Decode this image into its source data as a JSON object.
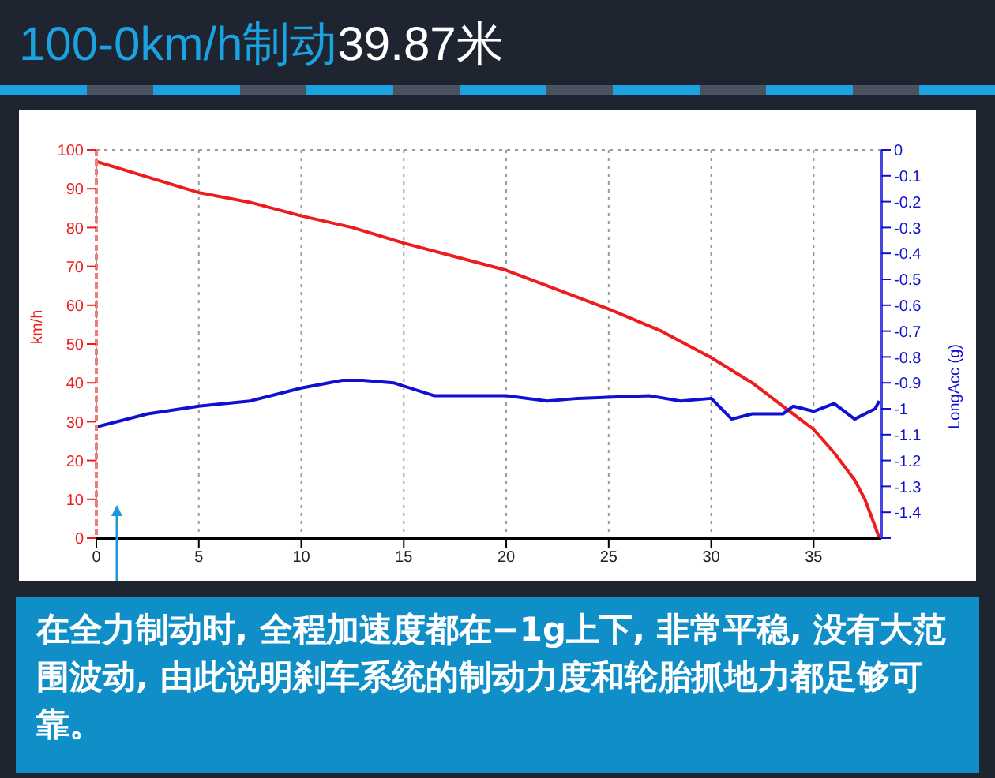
{
  "chart_data": {
    "type": "line",
    "title": "100-0km/h制动39.87米",
    "ylabel": "km/h",
    "y2label": "LongAcc (g)",
    "annotations": [
      "在全力制动时, 全程加速度都在−1g上下, 非常平稳, 没有大范围波动, 由此说明刹车系统的制动力度和轮胎抓地力都足够可靠。"
    ],
    "xlim": [
      0,
      38.3
    ],
    "xticks": [
      0,
      5,
      10,
      15,
      20,
      25,
      30,
      35
    ],
    "ylim": [
      0,
      100
    ],
    "yticks": [
      0,
      10,
      20,
      30,
      40,
      50,
      60,
      70,
      80,
      90,
      100
    ],
    "y2lim": [
      -1.5,
      0
    ],
    "y2ticks": [
      {
        "value": -1.5,
        "label": null
      },
      {
        "value": -1.4,
        "label": "-1.4"
      },
      {
        "value": -1.3,
        "label": "-1.3"
      },
      {
        "value": -1.2,
        "label": "-1.2"
      },
      {
        "value": -1.1,
        "label": "-1.1"
      },
      {
        "value": -1,
        "label": "-1"
      },
      {
        "value": -0.9,
        "label": "-0.9"
      },
      {
        "value": -0.8,
        "label": "-0.8"
      },
      {
        "value": -0.7,
        "label": "-0.7"
      },
      {
        "value": -0.6,
        "label": "-0.6"
      },
      {
        "value": -0.5,
        "label": "-0.5"
      },
      {
        "value": -0.4,
        "label": "-0.4"
      },
      {
        "value": -0.3,
        "label": "-0.3"
      },
      {
        "value": -0.2,
        "label": "-0.2"
      },
      {
        "value": -0.1,
        "label": "-0.1"
      },
      {
        "value": 0,
        "label": "0"
      }
    ],
    "grid": true,
    "legend": false,
    "marker": "none",
    "line_style": "solid",
    "series": [
      {
        "color": "#ee1c1c",
        "x": [
          0,
          2.5,
          5,
          7.5,
          10,
          12.5,
          15,
          17.5,
          20,
          22.5,
          25,
          27.5,
          30,
          32,
          34,
          35,
          36,
          37,
          37.5,
          38,
          38.2
        ],
        "values": [
          97,
          93,
          89,
          86.5,
          83,
          80,
          76,
          72.5,
          69,
          64,
          59,
          53.5,
          46.5,
          40,
          32,
          28,
          22,
          15,
          10,
          3,
          0
        ]
      },
      {
        "color": "#1010d0",
        "axis": "y2",
        "x": [
          0,
          2.5,
          5,
          7.5,
          10,
          12,
          13,
          14.5,
          16.5,
          17.5,
          20,
          22,
          23.5,
          27,
          28.5,
          30,
          31,
          32,
          33.5,
          34,
          35,
          36,
          37,
          38,
          38.2
        ],
        "values": [
          -1.07,
          -1.02,
          -0.99,
          -0.97,
          -0.92,
          -0.89,
          -0.89,
          -0.9,
          -0.95,
          -0.95,
          -0.95,
          -0.97,
          -0.96,
          -0.95,
          -0.97,
          -0.96,
          -1.04,
          -1.02,
          -1.02,
          -0.99,
          -1.01,
          -0.98,
          -1.04,
          -1.0,
          -0.97
        ]
      }
    ]
  }
}
